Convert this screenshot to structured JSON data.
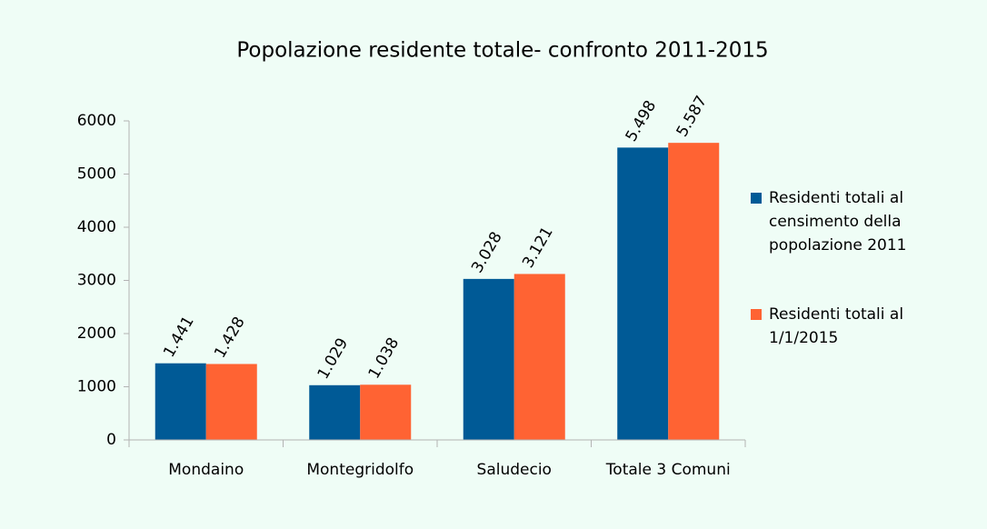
{
  "chart_data": {
    "type": "bar",
    "title": "Popolazione residente totale- confronto 2011-2015",
    "categories": [
      "Mondaino",
      "Montegridolfo",
      "Saludecio",
      "Totale 3 Comuni"
    ],
    "series": [
      {
        "name": "Residenti totali al censimento della popolazione 2011",
        "color": "#005a96",
        "values": [
          1441,
          1029,
          3028,
          5498
        ],
        "value_labels": [
          "1.441",
          "1.029",
          "3.028",
          "5.498"
        ]
      },
      {
        "name": "Residenti totali al 1/1/2015",
        "color": "#ff6333",
        "values": [
          1428,
          1038,
          3121,
          5587
        ],
        "value_labels": [
          "1.428",
          "1.038",
          "3.121",
          "5.587"
        ]
      }
    ],
    "ylim": [
      0,
      6000
    ],
    "yticks": [
      0,
      1000,
      2000,
      3000,
      4000,
      5000,
      6000
    ],
    "grid": false,
    "legend": "right"
  }
}
